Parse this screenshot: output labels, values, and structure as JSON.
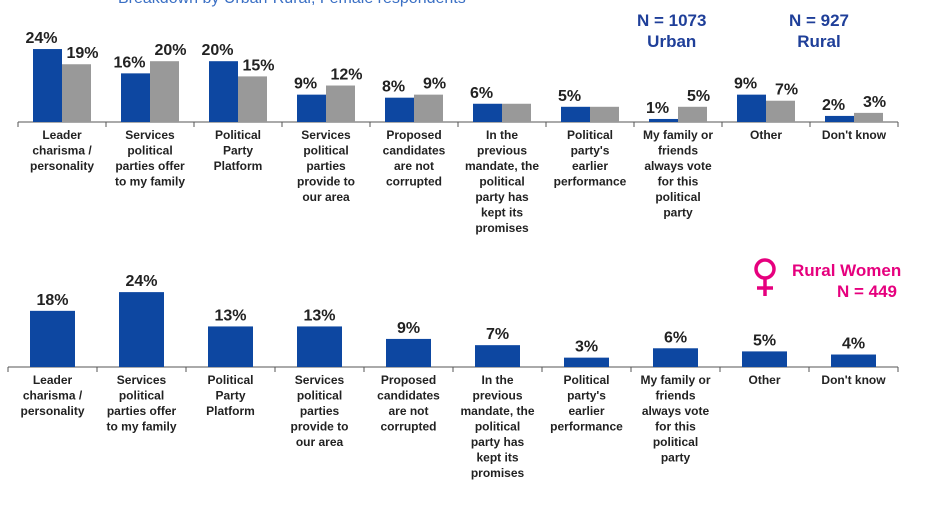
{
  "subtitle": "Breakdown by Urban-Rural, Female respondents",
  "legend": {
    "urban": {
      "n_label": "N = 1073",
      "name": "Urban",
      "color": "#0d47a1"
    },
    "rural": {
      "n_label": "N = 927",
      "name": "Rural",
      "color": "#999999"
    },
    "rural_women": {
      "name": "Rural Women",
      "n_label": "N = 449",
      "color": "#e6007e"
    }
  },
  "chart_data": [
    {
      "type": "bar",
      "categories": [
        "Leader charisma / personality",
        "Services political parties offer to my family",
        "Political Party Platform",
        "Services political parties provide to our area",
        "Proposed candidates are not corrupted",
        "In the previous mandate, the political party has kept its promises",
        "Political party's earlier performance",
        "My family or friends always vote for this political party",
        "Other",
        "Don't know"
      ],
      "category_lines": [
        [
          "Leader",
          "charisma /",
          "personality"
        ],
        [
          "Services",
          "political",
          "parties offer",
          "to my family"
        ],
        [
          "Political",
          "Party",
          "Platform"
        ],
        [
          "Services",
          "political",
          "parties",
          "provide to",
          "our area"
        ],
        [
          "Proposed",
          "candidates",
          "are not",
          "corrupted"
        ],
        [
          "In the",
          "previous",
          "mandate, the",
          "political",
          "party has",
          "kept its",
          "promises"
        ],
        [
          "Political",
          "party's",
          "earlier",
          "performance"
        ],
        [
          "My family or",
          "friends",
          "always vote",
          "for this",
          "political",
          "party"
        ],
        [
          "Other"
        ],
        [
          "Don't know"
        ]
      ],
      "series": [
        {
          "name": "Urban",
          "values": [
            24,
            16,
            20,
            9,
            8,
            6,
            5,
            1,
            9,
            2
          ],
          "labels": [
            "24%",
            "16%",
            "20%",
            "9%",
            "8%",
            "6%",
            "5%",
            "1%",
            "9%",
            "2%"
          ]
        },
        {
          "name": "Rural",
          "values": [
            19,
            20,
            15,
            12,
            9,
            6,
            5,
            5,
            7,
            3
          ],
          "labels": [
            "19%",
            "20%",
            "15%",
            "12%",
            "9%",
            "",
            "",
            "5%",
            "7%",
            "3%"
          ]
        }
      ],
      "ylim": [
        0,
        25
      ]
    },
    {
      "type": "bar",
      "categories": [
        "Leader charisma / personality",
        "Services political parties offer to my family",
        "Political Party Platform",
        "Services political parties provide to our area",
        "Proposed candidates are not corrupted",
        "In the previous mandate, the political party has kept its promises",
        "Political party's earlier performance",
        "My family or friends always vote for this political party",
        "Other",
        "Don't know"
      ],
      "category_lines": [
        [
          "Leader",
          "charisma /",
          "personality"
        ],
        [
          "Services",
          "political",
          "parties offer",
          "to my family"
        ],
        [
          "Political",
          "Party",
          "Platform"
        ],
        [
          "Services",
          "political",
          "parties",
          "provide to",
          "our area"
        ],
        [
          "Proposed",
          "candidates",
          "are not",
          "corrupted"
        ],
        [
          "In the",
          "previous",
          "mandate, the",
          "political",
          "party has",
          "kept its",
          "promises"
        ],
        [
          "Political",
          "party's",
          "earlier",
          "performance"
        ],
        [
          "My family or",
          "friends",
          "always vote",
          "for this",
          "political",
          "party"
        ],
        [
          "Other"
        ],
        [
          "Don't know"
        ]
      ],
      "series": [
        {
          "name": "Rural Women",
          "values": [
            18,
            24,
            13,
            13,
            9,
            7,
            3,
            6,
            5,
            4
          ],
          "labels": [
            "18%",
            "24%",
            "13%",
            "13%",
            "9%",
            "7%",
            "3%",
            "6%",
            "5%",
            "4%"
          ]
        }
      ],
      "ylim": [
        0,
        25
      ]
    }
  ]
}
